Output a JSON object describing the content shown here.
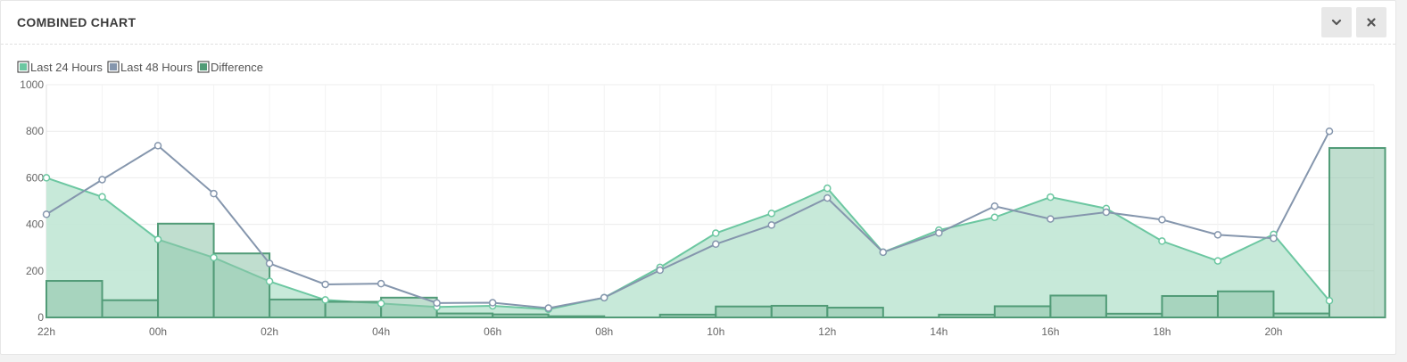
{
  "panel": {
    "title": "COMBINED CHART",
    "collapse_icon": "chevron-down-icon",
    "close_icon": "close-icon"
  },
  "colors": {
    "last24_line": "#6cc7a1",
    "last24_fill": "#c4e8d7",
    "last48_line": "#8596ad",
    "diff_fill": "#8cc2a7",
    "diff_stroke": "#519b77",
    "grid": "#ececec",
    "text": "#666666"
  },
  "chart_data": {
    "type": "combined",
    "title": "",
    "xlabel": "",
    "ylabel": "",
    "ylim": [
      0,
      1000
    ],
    "yticks": [
      0,
      200,
      400,
      600,
      800,
      1000
    ],
    "grid": true,
    "legend_position": "top-left",
    "x_hours": [
      "22h",
      "23h",
      "00h",
      "01h",
      "02h",
      "03h",
      "04h",
      "05h",
      "06h",
      "07h",
      "08h",
      "09h",
      "10h",
      "11h",
      "12h",
      "13h",
      "14h",
      "15h",
      "16h",
      "17h",
      "18h",
      "19h",
      "20h",
      "21h"
    ],
    "xtick_labels": [
      "22h",
      "00h",
      "02h",
      "04h",
      "06h",
      "08h",
      "10h",
      "12h",
      "14h",
      "16h",
      "18h",
      "20h"
    ],
    "series": [
      {
        "name": "Last 24 Hours",
        "type": "area",
        "values": [
          600,
          518,
          335,
          257,
          155,
          75,
          60,
          45,
          50,
          35,
          85,
          215,
          362,
          447,
          555,
          280,
          375,
          430,
          517,
          468,
          328,
          243,
          357,
          72
        ]
      },
      {
        "name": "Last 48 Hours",
        "type": "line",
        "values": [
          443,
          592,
          738,
          532,
          232,
          142,
          145,
          62,
          63,
          40,
          85,
          203,
          315,
          397,
          513,
          280,
          363,
          478,
          423,
          452,
          420,
          355,
          340,
          800
        ]
      },
      {
        "name": "Difference",
        "type": "bar",
        "values": [
          157,
          74,
          403,
          275,
          77,
          67,
          85,
          17,
          13,
          5,
          0,
          12,
          47,
          50,
          42,
          0,
          12,
          48,
          94,
          16,
          92,
          112,
          17,
          728
        ]
      }
    ]
  }
}
